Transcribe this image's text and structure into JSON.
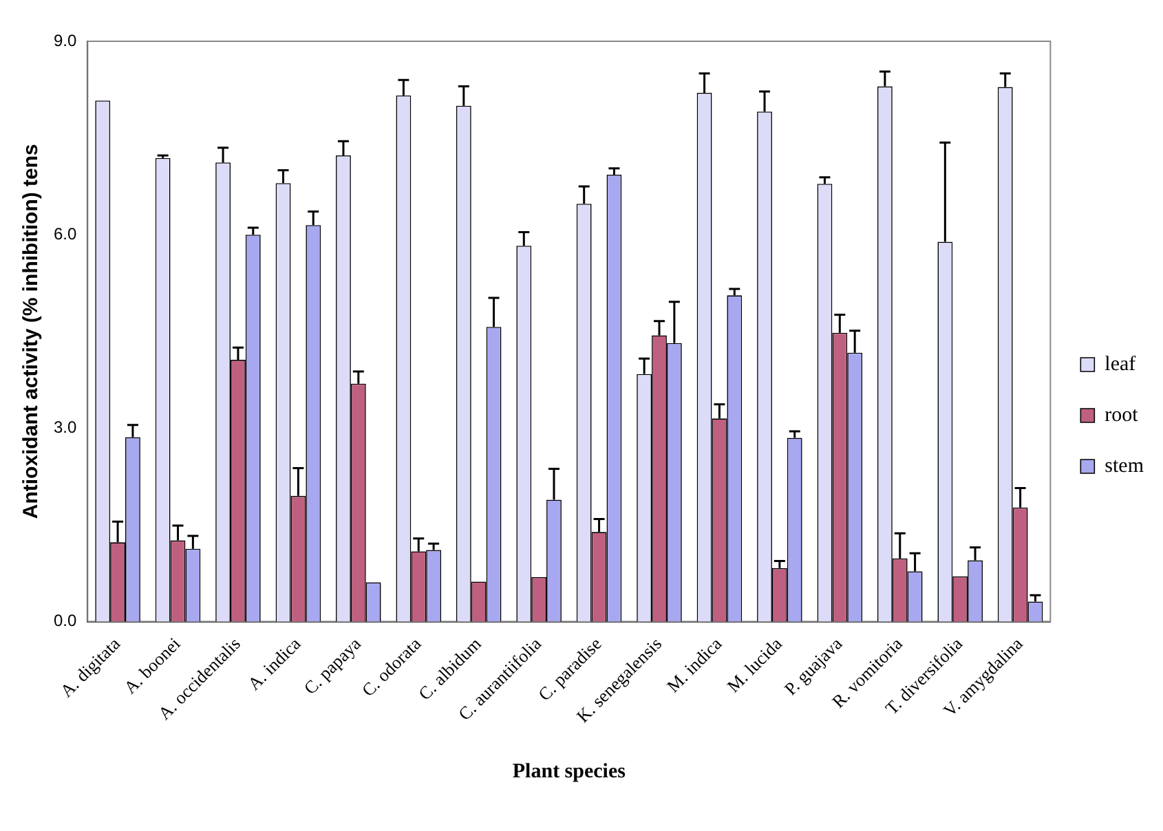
{
  "chart_data": {
    "type": "bar",
    "xlabel": "Plant species",
    "ylabel": "Antioxidant activity (% inhibition) tens",
    "categories": [
      "A. digitata",
      "A. boonei",
      "A. occidentalis",
      "A. indica",
      "C. papaya",
      "C. odorata",
      "C. albidum",
      "C. aurantiifolia",
      "C. paradise",
      "K. senegalensis",
      "M. indica",
      "M. lucida",
      "P. guajava",
      "R. vomitoria",
      "T. diversifolia",
      "V. amygdalina"
    ],
    "series": [
      {
        "name": "leaf",
        "color": "#dcdcf8",
        "values": [
          8.08,
          7.19,
          7.12,
          6.8,
          7.23,
          8.16,
          8.0,
          5.83,
          6.48,
          3.84,
          8.2,
          7.91,
          6.79,
          8.3,
          5.89,
          8.29
        ],
        "errors": [
          null,
          [
            7.19,
            7.23
          ],
          [
            7.12,
            7.35
          ],
          [
            6.8,
            7.0
          ],
          [
            7.23,
            7.45
          ],
          [
            8.16,
            8.4
          ],
          [
            8.0,
            8.3
          ],
          [
            5.83,
            6.04
          ],
          [
            6.48,
            6.75
          ],
          [
            3.84,
            4.08
          ],
          [
            8.2,
            8.5
          ],
          [
            7.91,
            8.22
          ],
          [
            6.79,
            6.89
          ],
          [
            8.3,
            8.53
          ],
          [
            5.89,
            7.43
          ],
          [
            8.29,
            8.5
          ]
        ]
      },
      {
        "name": "root",
        "color": "#c06080",
        "values": [
          1.23,
          1.26,
          4.06,
          1.95,
          3.69,
          1.09,
          0.62,
          0.69,
          1.39,
          4.44,
          3.15,
          0.83,
          4.48,
          0.98,
          0.7,
          1.77
        ],
        "errors": [
          [
            1.23,
            1.55
          ],
          [
            1.26,
            1.49
          ],
          [
            4.06,
            4.25
          ],
          [
            1.95,
            2.38
          ],
          [
            3.69,
            3.88
          ],
          [
            1.09,
            1.29
          ],
          null,
          null,
          [
            1.39,
            1.59
          ],
          [
            4.44,
            4.66
          ],
          [
            3.15,
            3.37
          ],
          [
            0.83,
            0.94
          ],
          [
            4.48,
            4.76
          ],
          [
            0.98,
            1.37
          ],
          null,
          [
            1.77,
            2.07
          ]
        ]
      },
      {
        "name": "stem",
        "color": "#a8a8f0",
        "values": [
          2.86,
          1.13,
          6.0,
          6.15,
          0.61,
          1.11,
          4.57,
          1.89,
          6.93,
          4.32,
          5.06,
          2.85,
          4.17,
          0.78,
          0.95,
          0.31
        ],
        "errors": [
          [
            2.86,
            3.05
          ],
          [
            1.13,
            1.33
          ],
          [
            6.0,
            6.11
          ],
          [
            6.15,
            6.36
          ],
          null,
          [
            1.11,
            1.21
          ],
          [
            4.57,
            5.02
          ],
          [
            1.89,
            2.37
          ],
          [
            6.93,
            7.03
          ],
          [
            4.32,
            4.96
          ],
          [
            5.06,
            5.16
          ],
          [
            2.85,
            2.95
          ],
          [
            4.17,
            4.51
          ],
          [
            0.78,
            1.06
          ],
          [
            0.95,
            1.15
          ],
          [
            0.31,
            0.41
          ]
        ]
      }
    ],
    "ylim": [
      0,
      9
    ],
    "yticks": [
      {
        "value": 0,
        "label": "0.0"
      },
      {
        "value": 3,
        "label": "3.0"
      },
      {
        "value": 6,
        "label": "6.0"
      },
      {
        "value": 9,
        "label": "9.0"
      }
    ],
    "legend": "right"
  }
}
